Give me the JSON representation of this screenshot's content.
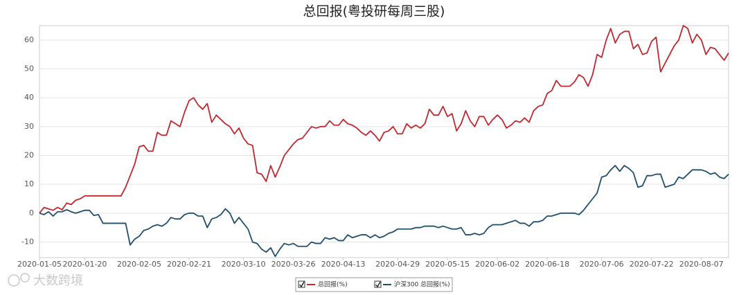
{
  "chart_data": {
    "type": "line",
    "title": "总回报(粤投研每周三股)",
    "watermark": "大数跨境",
    "categories": [
      "2020-01-05",
      null,
      null,
      null,
      null,
      null,
      null,
      null,
      null,
      null,
      "2020-01-20",
      null,
      null,
      null,
      null,
      null,
      null,
      null,
      null,
      null,
      null,
      null,
      "2020-02-05",
      null,
      null,
      null,
      null,
      null,
      null,
      null,
      null,
      null,
      null,
      "2020-02-21",
      null,
      null,
      null,
      null,
      null,
      null,
      null,
      null,
      null,
      null,
      null,
      "2020-03-10",
      null,
      null,
      null,
      null,
      null,
      null,
      null,
      null,
      null,
      null,
      "2020-03-26",
      null,
      null,
      null,
      null,
      null,
      null,
      null,
      null,
      null,
      null,
      "2020-04-13",
      null,
      null,
      null,
      null,
      null,
      null,
      null,
      null,
      null,
      null,
      null,
      "2020-04-29",
      null,
      null,
      null,
      null,
      null,
      null,
      null,
      null,
      null,
      null,
      "2020-05-15",
      null,
      null,
      null,
      null,
      null,
      null,
      null,
      null,
      null,
      null,
      "2020-06-02",
      null,
      null,
      null,
      null,
      null,
      null,
      null,
      null,
      null,
      null,
      "2020-06-18",
      null,
      null,
      null,
      null,
      null,
      null,
      null,
      null,
      null,
      null,
      null,
      "2020-07-06",
      null,
      null,
      null,
      null,
      null,
      null,
      null,
      null,
      null,
      null,
      "2020-07-22",
      null,
      null,
      null,
      null,
      null,
      null,
      null,
      null,
      null,
      null,
      "2020-08-07",
      null,
      null,
      null,
      null,
      null,
      null
    ],
    "series": [
      {
        "name": "总回报(%)",
        "color": "#c0272d",
        "values": [
          0,
          2,
          1.5,
          1,
          2,
          1.2,
          3.5,
          3,
          4.5,
          5,
          6,
          6,
          6,
          6,
          6,
          6,
          6,
          6,
          6,
          9,
          13,
          17,
          23,
          23.5,
          21.5,
          21.5,
          28,
          27,
          27,
          32,
          31,
          30,
          35,
          39,
          40,
          37.5,
          36,
          38,
          31.5,
          34,
          32.5,
          31,
          30,
          27.5,
          29.5,
          26,
          24,
          23.5,
          14,
          13.5,
          11,
          16.5,
          12.5,
          16,
          20,
          22,
          24,
          25.5,
          26,
          28,
          30,
          29.5,
          30,
          30,
          32,
          30.5,
          30.5,
          32.5,
          31,
          30.5,
          29.5,
          28,
          27,
          28.5,
          27,
          25,
          28,
          28.5,
          30,
          27.5,
          27.5,
          31,
          29.5,
          30.5,
          29.5,
          31,
          36,
          34,
          34,
          37,
          33.5,
          34.5,
          28.5,
          31,
          35.5,
          32,
          30,
          33.5,
          33.5,
          30.5,
          32.5,
          34,
          32.5,
          29.5,
          30.5,
          32,
          31.5,
          33,
          31.5,
          35.5,
          37,
          37.5,
          41.5,
          42.5,
          46,
          44,
          44,
          44,
          45.5,
          48,
          47,
          44,
          48,
          55,
          54,
          60,
          64,
          59,
          62,
          63,
          63,
          57,
          58.5,
          55,
          55.5,
          59.5,
          61,
          49,
          52,
          55,
          58,
          60,
          65,
          64,
          59,
          62,
          60,
          55,
          57.5,
          57,
          55,
          53,
          55.5
        ]
      },
      {
        "name": "沪深300 总回报(%)",
        "color": "#1f4e6b",
        "values": [
          0,
          -0.5,
          0.5,
          -1,
          0.5,
          0.5,
          1.2,
          0.5,
          0,
          0.5,
          1,
          1,
          -0.8,
          -0.5,
          -3.5,
          -3.5,
          -3.5,
          -3.5,
          -3.5,
          -3.5,
          -11,
          -9,
          -8,
          -6,
          -5.5,
          -4.5,
          -4,
          -4.5,
          -3.5,
          -1.5,
          -2,
          -2,
          -0.5,
          0,
          0,
          -1,
          -1,
          -5,
          -2,
          -1.5,
          -0.5,
          1.5,
          0,
          -3.5,
          -1.5,
          -3.5,
          -5.5,
          -10,
          -10.5,
          -12.5,
          -13.5,
          -12,
          -15,
          -12.5,
          -10.5,
          -11,
          -10.5,
          -11.5,
          -11.5,
          -11.5,
          -10,
          -10.5,
          -10.5,
          -8.5,
          -9,
          -8.5,
          -9.5,
          -9.5,
          -7.5,
          -8.5,
          -8,
          -7.5,
          -7.5,
          -8.5,
          -7.5,
          -8.5,
          -8,
          -7,
          -6.5,
          -5.5,
          -5.5,
          -5.5,
          -5.5,
          -5,
          -5,
          -4.5,
          -4.5,
          -4.5,
          -5,
          -4.5,
          -5,
          -5.5,
          -5.5,
          -5,
          -7.5,
          -7.5,
          -7,
          -7.5,
          -7,
          -5,
          -4,
          -4,
          -4,
          -3.5,
          -3,
          -2.5,
          -3.5,
          -3.5,
          -4.5,
          -3,
          -3,
          -2.5,
          -1,
          -1,
          -0.5,
          0,
          0,
          0,
          0,
          -0.5,
          1,
          3,
          5,
          7,
          12.5,
          13,
          15,
          16.5,
          14.5,
          16.5,
          15.5,
          14,
          9,
          9.5,
          13,
          13,
          13.5,
          13.5,
          9,
          9.5,
          10,
          12.5,
          12,
          13.5,
          15,
          15,
          15,
          14.5,
          13.5,
          14,
          12.5,
          12,
          13.5
        ]
      }
    ],
    "ylim": [
      -15.4,
      65
    ],
    "yticks": [
      -10,
      0,
      10,
      20,
      30,
      40,
      50,
      60
    ],
    "grid": true
  }
}
